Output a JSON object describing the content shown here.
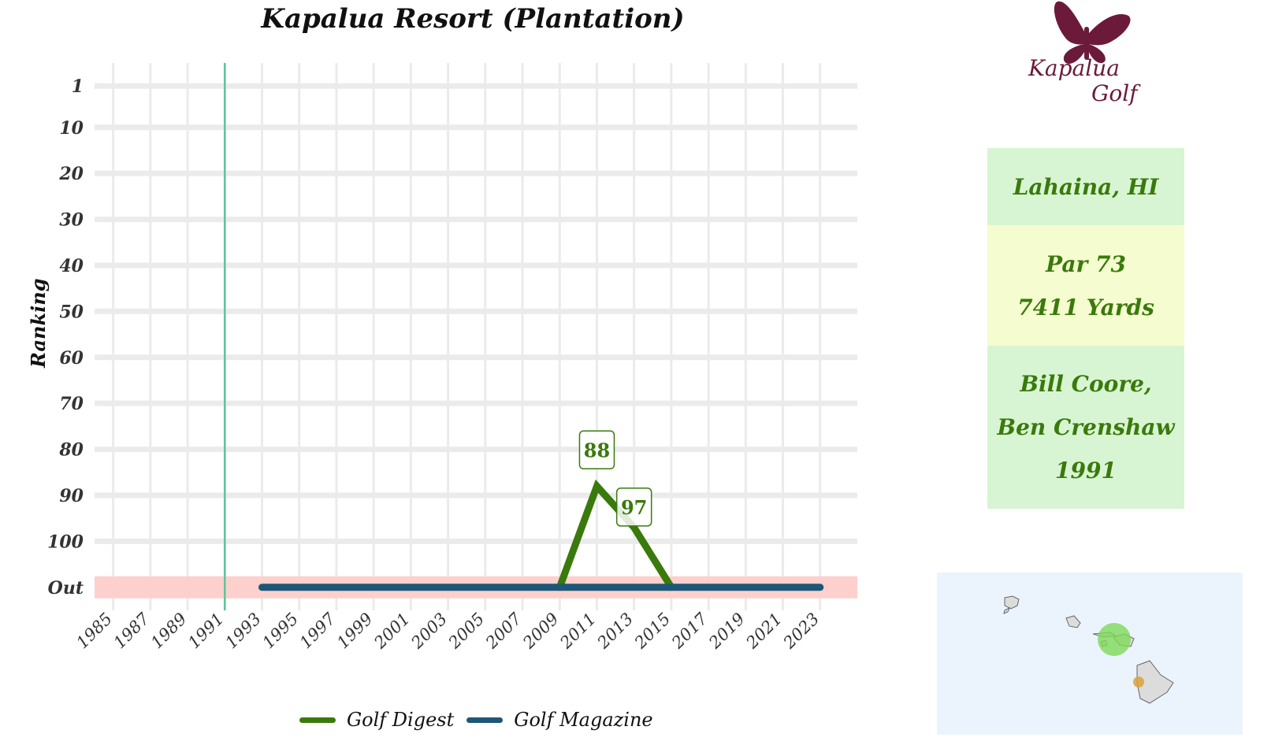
{
  "chart_data": {
    "type": "line",
    "title": "Kapalua Resort (Plantation)",
    "ylabel": "Ranking",
    "xlabel": "",
    "x_ticks": [
      "1985",
      "1987",
      "1989",
      "1991",
      "1993",
      "1995",
      "1997",
      "1999",
      "2001",
      "2003",
      "2005",
      "2007",
      "2009",
      "2011",
      "2013",
      "2015",
      "2017",
      "2019",
      "2021",
      "2023"
    ],
    "xlim": [
      1984,
      2025
    ],
    "y_ticks": [
      "1",
      "10",
      "20",
      "30",
      "40",
      "50",
      "60",
      "70",
      "80",
      "90",
      "100",
      "Out"
    ],
    "y_tick_values": [
      1,
      10,
      20,
      30,
      40,
      50,
      60,
      70,
      80,
      90,
      100,
      110
    ],
    "ylim": [
      115,
      -4
    ],
    "out_value": 110,
    "out_band_color": "#fdd0cd",
    "opening_year": 1991,
    "opening_line_color": "#5fc39a",
    "grid": true,
    "legend_position": "bottom",
    "series": [
      {
        "name": "Golf Digest",
        "color": "#3a7a0c",
        "x": [
          2009,
          2011,
          2013,
          2015
        ],
        "y": [
          110,
          88,
          97,
          110
        ]
      },
      {
        "name": "Golf Magazine",
        "color": "#1d5777",
        "x": [
          1993,
          2023
        ],
        "y": [
          110,
          110
        ]
      }
    ],
    "annotations": [
      {
        "x": 2011,
        "y": 88,
        "text": "88",
        "series": "Golf Digest"
      },
      {
        "x": 2013,
        "y": 97,
        "text": "97",
        "series": "Golf Digest"
      }
    ]
  },
  "logo": {
    "line1": "Kapalua",
    "line2": "Golf",
    "color": "#6b1a3a"
  },
  "info": {
    "location": "Lahaina, HI",
    "par": "Par 73",
    "yards": "7411 Yards",
    "architect_line1": "Bill Coore,",
    "architect_line2": "Ben Crenshaw",
    "year": "1991"
  },
  "map": {
    "highlight_color": "#7ed957",
    "marker_color": "#d9a23a"
  }
}
